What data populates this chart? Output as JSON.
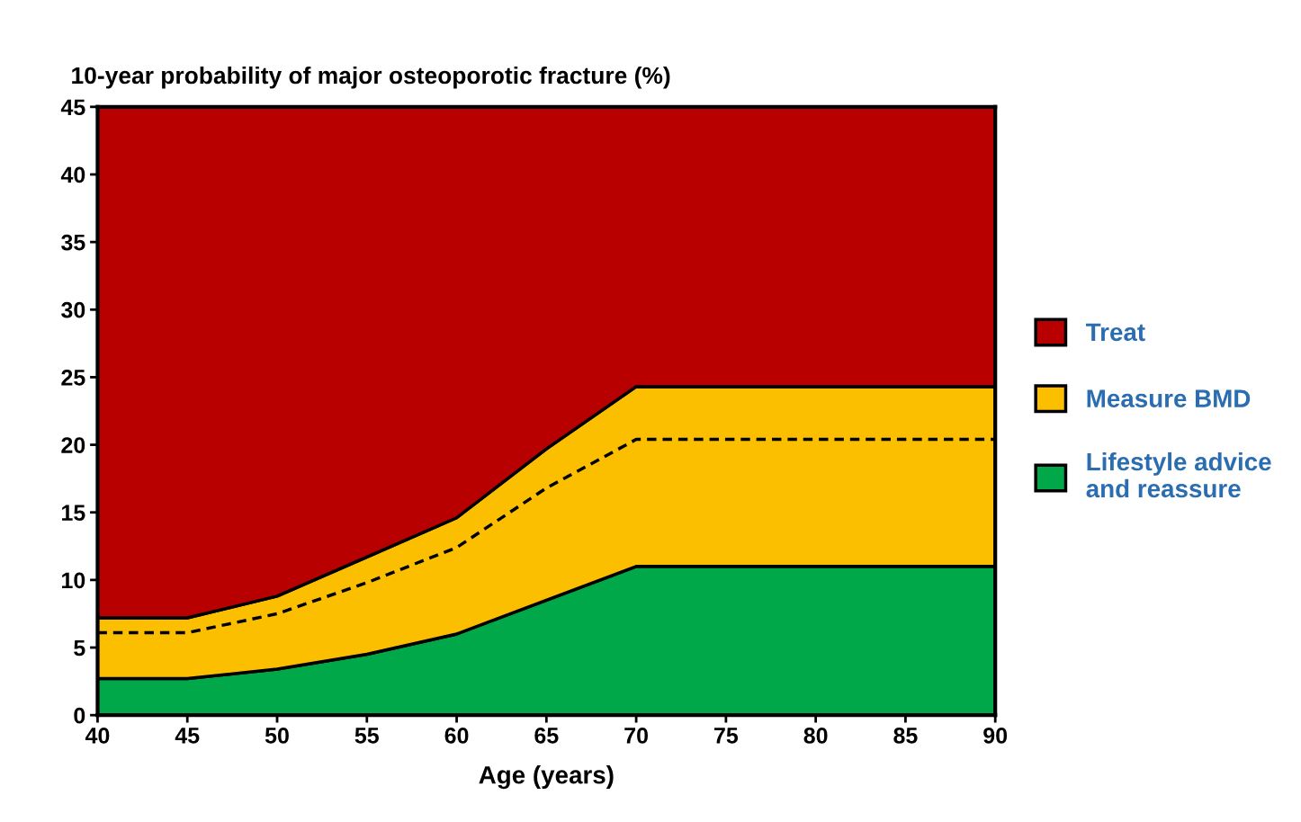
{
  "chart_data": {
    "type": "area",
    "stacked": true,
    "ylabel": "10-year probability of major osteoporotic fracture (%)",
    "xlabel": "Age (years)",
    "x": [
      40,
      45,
      50,
      55,
      60,
      65,
      70,
      90
    ],
    "series": [
      {
        "name": "Lifestyle advice and reassure",
        "color": "#00a84a",
        "values": [
          2.7,
          2.7,
          3.4,
          4.5,
          6.0,
          8.5,
          11.0,
          11.0
        ]
      },
      {
        "name": "Measure BMD",
        "color": "#fcbf00",
        "values": [
          4.5,
          4.5,
          5.4,
          7.2,
          8.6,
          11.2,
          13.3,
          13.3
        ]
      },
      {
        "name": "Treat",
        "color": "#b80000",
        "values": [
          37.8,
          37.8,
          36.2,
          33.3,
          30.4,
          25.3,
          20.7,
          20.7
        ]
      },
      {
        "type": "line",
        "line_style": "dashed",
        "color": "#000000",
        "values": [
          6.1,
          6.1,
          7.5,
          9.8,
          12.4,
          16.8,
          20.4,
          20.4
        ]
      }
    ],
    "xlim": [
      40,
      90
    ],
    "xticks": [
      40,
      45,
      50,
      55,
      60,
      65,
      70,
      75,
      80,
      85,
      90
    ],
    "ylim": [
      0,
      45
    ],
    "yticks": [
      0,
      5,
      10,
      15,
      20,
      25,
      30,
      35,
      40,
      45
    ],
    "legend": "right",
    "grid": false
  }
}
